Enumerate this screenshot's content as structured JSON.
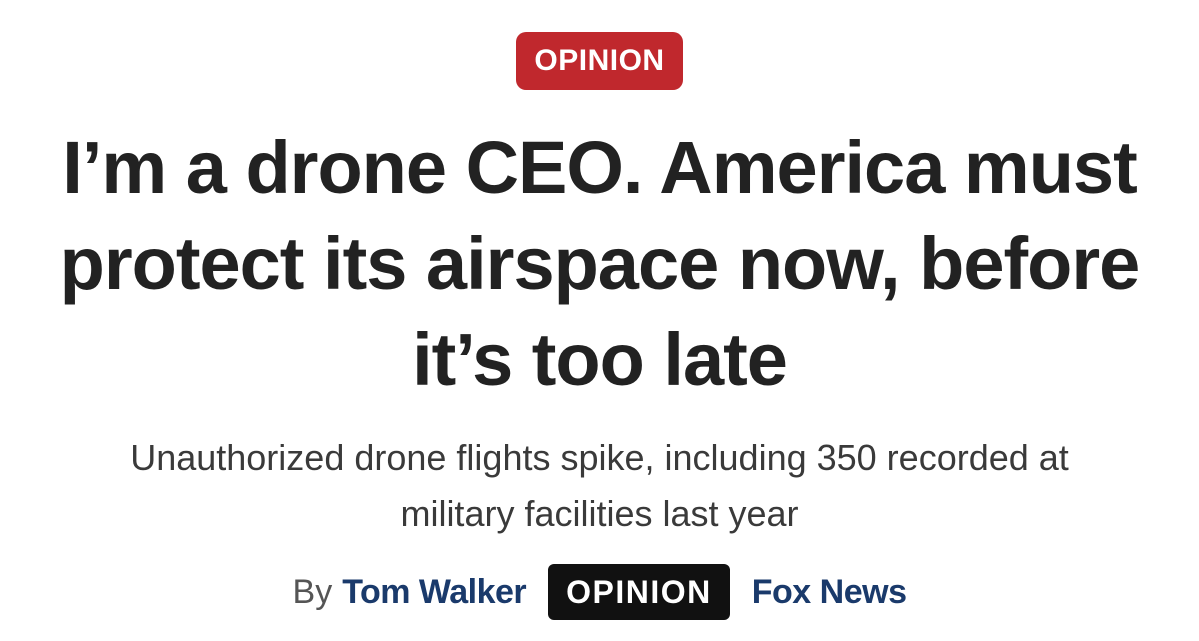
{
  "article": {
    "section_label": "OPINION",
    "headline": "I’m a drone CEO. America must protect its airspace now, before it’s too late",
    "subheadline": "Unauthorized drone flights spike, including 350 recorded at military facilities last year",
    "byline": {
      "prefix": "By",
      "author": "Tom Walker",
      "tag": "OPINION",
      "outlet": "Fox News"
    }
  },
  "colors": {
    "section_badge": "#c0282d",
    "headline": "#222222",
    "author_link": "#1a3a6b",
    "opinion_tag": "#111111"
  }
}
